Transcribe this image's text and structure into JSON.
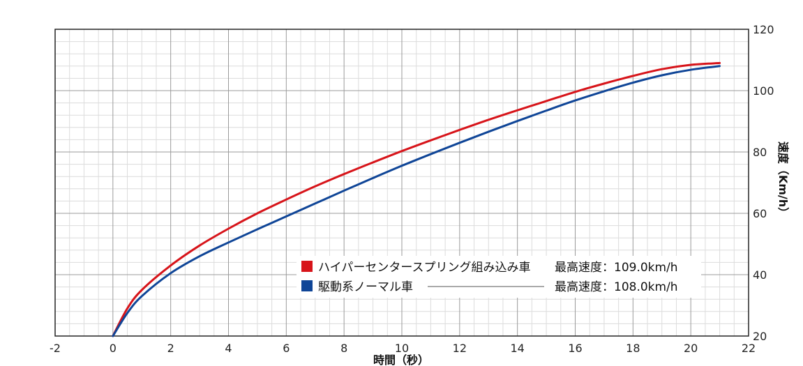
{
  "chart_data": {
    "type": "line",
    "title": "",
    "xlabel": "時間（秒）",
    "ylabel": "速度（Km/h）",
    "xlim": [
      -2,
      22
    ],
    "ylim": [
      20,
      120
    ],
    "x_ticks": [
      "-2",
      "0",
      "2",
      "4",
      "6",
      "8",
      "10",
      "12",
      "14",
      "16",
      "18",
      "20",
      "22"
    ],
    "y_ticks": [
      "20",
      "40",
      "60",
      "80",
      "100",
      "120"
    ],
    "grid": true,
    "legend_position": "bottom-right",
    "series": [
      {
        "name": "ハイパーセンタースプリング組み込み車",
        "max_speed_label": "最高速度：109.0km/h",
        "color": "#d7141a",
        "x": [
          0,
          0.5,
          1,
          2,
          3,
          4,
          5,
          6,
          7,
          8,
          9,
          10,
          11,
          12,
          13,
          14,
          15,
          16,
          17,
          18,
          19,
          20,
          21
        ],
        "y": [
          20,
          29,
          35,
          43,
          49.5,
          55,
          60,
          64.5,
          68.8,
          72.8,
          76.6,
          80.3,
          83.8,
          87.2,
          90.5,
          93.6,
          96.6,
          99.6,
          102.3,
          104.8,
          107,
          108.4,
          109
        ]
      },
      {
        "name": "駆動系ノーマル車",
        "max_speed_label": "最高速度：108.0km/h",
        "color": "#0f4597",
        "x": [
          0,
          0.5,
          1,
          2,
          3,
          4,
          5,
          6,
          7,
          8,
          9,
          10,
          11,
          12,
          13,
          14,
          15,
          16,
          17,
          18,
          19,
          20,
          21
        ],
        "y": [
          20,
          27.5,
          33,
          40.5,
          46,
          50.5,
          54.8,
          59,
          63.2,
          67.4,
          71.5,
          75.5,
          79.3,
          83,
          86.6,
          90.1,
          93.5,
          96.8,
          99.8,
          102.6,
          105,
          106.8,
          108
        ]
      }
    ]
  }
}
